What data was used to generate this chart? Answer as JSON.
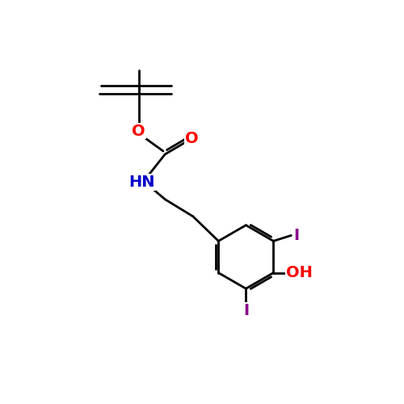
{
  "background_color": "#ffffff",
  "bond_color": "#000000",
  "atom_colors": {
    "O": "#ff0000",
    "N": "#0000cd",
    "I": "#8b008b",
    "C": "#000000"
  },
  "figsize": [
    5.0,
    5.0
  ],
  "dpi": 100,
  "lw": 2.0,
  "fontsize": 14
}
